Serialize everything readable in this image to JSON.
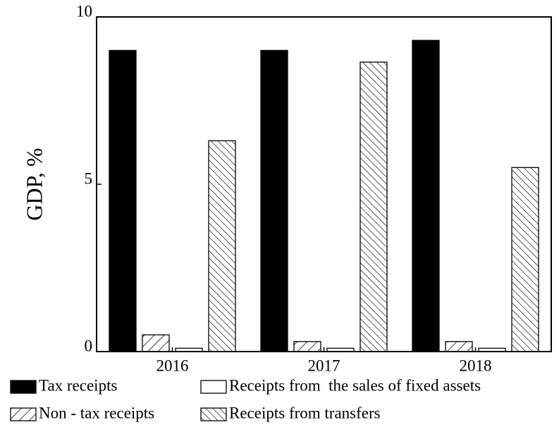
{
  "chart_data": {
    "type": "bar",
    "y_label": "GDP, %",
    "categories": [
      "2016",
      "2017",
      "2018"
    ],
    "series": [
      {
        "name": "Tax receipts",
        "color": "#000000",
        "hatch": "none",
        "values": [
          9.0,
          9.0,
          9.3
        ]
      },
      {
        "name": "Non - tax receipts",
        "color": "#ffffff",
        "hatch": "/",
        "values": [
          0.5,
          0.3,
          0.3
        ]
      },
      {
        "name": "Receipts from  the sales of fixed assets",
        "color": "#ffffff",
        "hatch": "none",
        "values": [
          0.1,
          0.1,
          0.1
        ]
      },
      {
        "name": "Receipts from transfers",
        "color": "#ffffff",
        "hatch": "\\",
        "values": [
          6.3,
          8.65,
          5.5
        ]
      }
    ],
    "ylim": [
      0,
      10
    ],
    "yticks": [
      0,
      5,
      10
    ],
    "grid": false
  }
}
